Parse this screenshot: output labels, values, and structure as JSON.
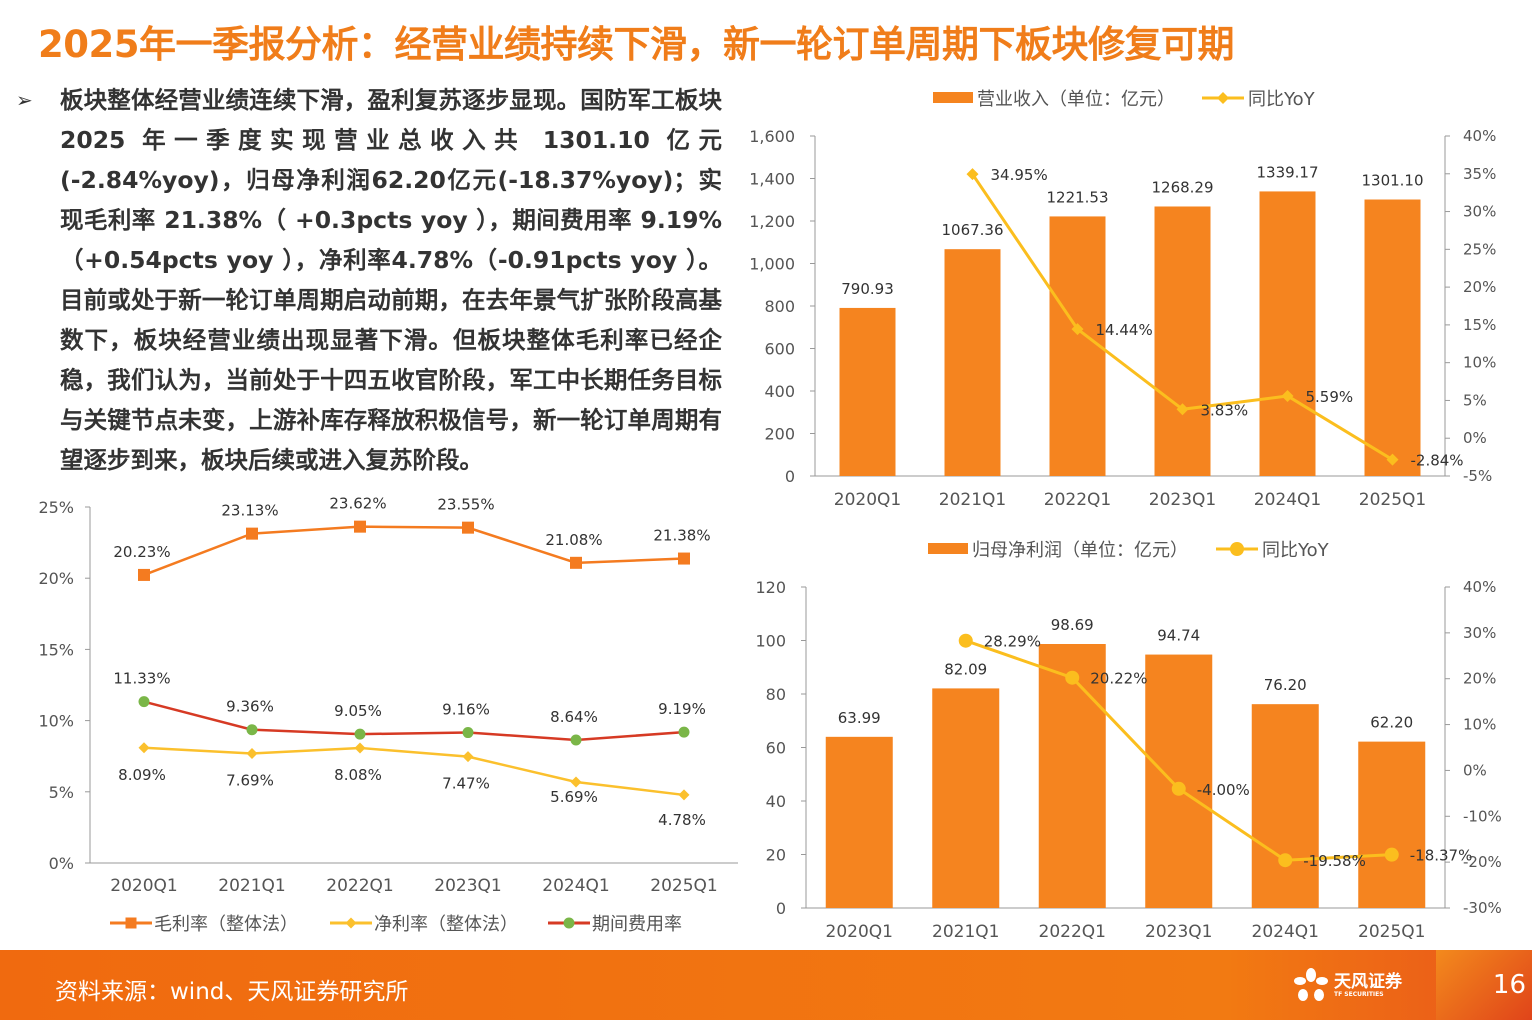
{
  "title": "2025年一季报分析：经营业绩持续下滑，新一轮订单周期下板块修复可期",
  "body_text": "板块整体经营业绩连续下滑，盈利复苏逐步显现。国防军工板块 2025 年一季度实现营业总收入共 1301.10 亿元(-2.84%yoy)，归母净利润62.20亿元(-18.37%yoy)；实现毛利率 21.38%（ +0.3pcts yoy ），期间费用率 9.19%（+0.54pcts yoy ），净利率4.78%（-0.91pcts yoy ）。目前或处于新一轮订单周期启动前期，在去年景气扩张阶段高基数下，板块经营业绩出现显著下滑。但板块整体毛利率已经企稳，我们认为，当前处于十四五收官阶段，军工中长期任务目标与关键节点未变，上游补库存释放积极信号，新一轮订单周期有望逐步到来，板块后续或进入复苏阶段。",
  "bullet": "➢",
  "footer": {
    "source": "资料来源：wind、天风证券研究所",
    "logo_name": "天风证券",
    "logo_en": "TF SECURITIES",
    "page": "16"
  },
  "colors": {
    "title": "#f07d1a",
    "bar": "#f5841f",
    "yoy_line": "#fbbe1e",
    "gross": "#f47b20",
    "net": "#fbc02d",
    "expense_line": "#d63a24",
    "expense_marker": "#7ab648"
  },
  "chart_data": [
    {
      "type": "bar+line",
      "categories": [
        "2020Q1",
        "2021Q1",
        "2022Q1",
        "2023Q1",
        "2024Q1",
        "2025Q1"
      ],
      "series": [
        {
          "name": "营业收入（单位：亿元）",
          "axis": "left",
          "kind": "bar",
          "values": [
            790.93,
            1067.36,
            1221.53,
            1268.29,
            1339.17,
            1301.1
          ],
          "labels": [
            "790.93",
            "1067.36",
            "1221.53",
            "1268.29",
            "1339.17",
            "1301.10"
          ]
        },
        {
          "name": "同比YoY",
          "axis": "right",
          "kind": "line",
          "values": [
            null,
            34.95,
            14.44,
            3.83,
            5.59,
            -2.84
          ],
          "labels": [
            "",
            "34.95%",
            "14.44%",
            "3.83%",
            "5.59%",
            "-2.84%"
          ]
        }
      ],
      "ylim_left": [
        0,
        1600
      ],
      "yticks_left": [
        "0",
        "200",
        "400",
        "600",
        "800",
        "1,000",
        "1,200",
        "1,400",
        "1,600"
      ],
      "ylim_right": [
        -5,
        40
      ],
      "yticks_right": [
        "-5%",
        "0%",
        "5%",
        "10%",
        "15%",
        "20%",
        "25%",
        "30%",
        "35%",
        "40%"
      ],
      "legend": "top"
    },
    {
      "type": "bar+line",
      "categories": [
        "2020Q1",
        "2021Q1",
        "2022Q1",
        "2023Q1",
        "2024Q1",
        "2025Q1"
      ],
      "series": [
        {
          "name": "归母净利润（单位：亿元）",
          "axis": "left",
          "kind": "bar",
          "values": [
            63.99,
            82.09,
            98.69,
            94.74,
            76.2,
            62.2
          ],
          "labels": [
            "63.99",
            "82.09",
            "98.69",
            "94.74",
            "76.20",
            "62.20"
          ]
        },
        {
          "name": "同比YoY",
          "axis": "right",
          "kind": "line",
          "values": [
            null,
            28.29,
            20.22,
            -4.0,
            -19.58,
            -18.37
          ],
          "labels": [
            "",
            "28.29%",
            "20.22%",
            "-4.00%",
            "-19.58%",
            "-18.37%"
          ]
        }
      ],
      "ylim_left": [
        0,
        120
      ],
      "yticks_left": [
        "0",
        "20",
        "40",
        "60",
        "80",
        "100",
        "120"
      ],
      "ylim_right": [
        -30,
        40
      ],
      "yticks_right": [
        "-30%",
        "-20%",
        "-10%",
        "0%",
        "10%",
        "20%",
        "30%",
        "40%"
      ],
      "legend": "top"
    },
    {
      "type": "line",
      "categories": [
        "2020Q1",
        "2021Q1",
        "2022Q1",
        "2023Q1",
        "2024Q1",
        "2025Q1"
      ],
      "series": [
        {
          "name": "毛利率（整体法）",
          "values": [
            20.23,
            23.13,
            23.62,
            23.55,
            21.08,
            21.38
          ],
          "labels": [
            "20.23%",
            "23.13%",
            "23.62%",
            "23.55%",
            "21.08%",
            "21.38%"
          ]
        },
        {
          "name": "净利率（整体法）",
          "values": [
            8.09,
            7.69,
            8.08,
            7.47,
            5.69,
            4.78
          ],
          "labels": [
            "8.09%",
            "7.69%",
            "8.08%",
            "7.47%",
            "5.69%",
            "4.78%"
          ]
        },
        {
          "name": "期间费用率",
          "values": [
            11.33,
            9.36,
            9.05,
            9.16,
            8.64,
            9.19
          ],
          "labels": [
            "11.33%",
            "9.36%",
            "9.05%",
            "9.16%",
            "8.64%",
            "9.19%"
          ]
        }
      ],
      "ylim": [
        0,
        25
      ],
      "yticks": [
        "0%",
        "5%",
        "10%",
        "15%",
        "20%",
        "25%"
      ],
      "legend": "bottom"
    }
  ]
}
